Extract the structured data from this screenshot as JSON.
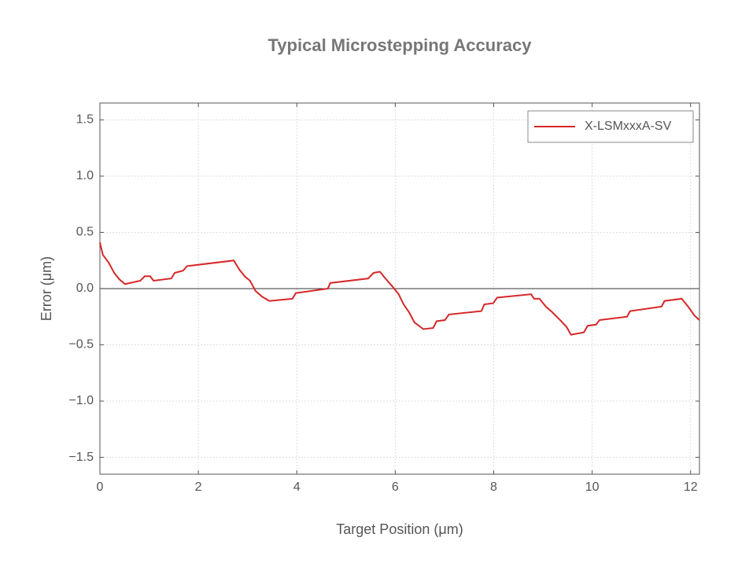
{
  "chart_data": {
    "type": "line",
    "title": "Typical Microstepping Accuracy",
    "x_label": "Target Position (μm)",
    "y_label": "Error (μm)",
    "xlim": [
      0,
      12.18
    ],
    "ylim": [
      -1.65,
      1.65
    ],
    "xticks": [
      0,
      2,
      4,
      6,
      8,
      10,
      12
    ],
    "yticks": [
      {
        "value": -1.5,
        "label": "−1.5"
      },
      {
        "value": -1.0,
        "label": "−1.0"
      },
      {
        "value": -0.5,
        "label": "−0.5"
      },
      {
        "value": 0,
        "label": "0.0"
      },
      0.5,
      {
        "value": 1.0,
        "label": "1.0"
      },
      1.5
    ],
    "grid": true,
    "reference_line": 0,
    "legend": "upper right",
    "x": [
      0,
      0.06,
      0.18,
      0.29,
      0.4,
      0.51,
      0.82,
      0.91,
      1.02,
      1.09,
      1.45,
      1.52,
      1.69,
      1.77,
      2.72,
      2.83,
      2.94,
      3.05,
      3.16,
      3.29,
      3.44,
      3.91,
      3.98,
      4.63,
      4.68,
      5.45,
      5.56,
      5.69,
      5.8,
      5.96,
      6.07,
      6.17,
      6.28,
      6.39,
      6.57,
      6.77,
      6.84,
      7.01,
      7.09,
      7.75,
      7.81,
      7.99,
      8.07,
      8.76,
      8.82,
      8.93,
      9.06,
      9.19,
      9.35,
      9.48,
      9.57,
      9.83,
      9.91,
      10.08,
      10.15,
      10.71,
      10.77,
      11.41,
      11.47,
      11.82,
      11.95,
      12.08,
      12.18
    ],
    "series": [
      {
        "name": "X-LSMxxxA-SV",
        "color": "#d62728",
        "values": [
          0.41,
          0.3,
          0.23,
          0.14,
          0.08,
          0.04,
          0.07,
          0.11,
          0.11,
          0.07,
          0.09,
          0.14,
          0.16,
          0.2,
          0.25,
          0.17,
          0.11,
          0.07,
          -0.02,
          -0.07,
          -0.11,
          -0.09,
          -0.04,
          0.0,
          0.05,
          0.09,
          0.14,
          0.15,
          0.09,
          0.01,
          -0.05,
          -0.14,
          -0.21,
          -0.3,
          -0.36,
          -0.35,
          -0.29,
          -0.28,
          -0.23,
          -0.2,
          -0.14,
          -0.13,
          -0.08,
          -0.05,
          -0.09,
          -0.09,
          -0.16,
          -0.21,
          -0.28,
          -0.34,
          -0.41,
          -0.39,
          -0.33,
          -0.32,
          -0.28,
          -0.25,
          -0.2,
          -0.16,
          -0.11,
          -0.09,
          -0.16,
          -0.24,
          -0.28
        ]
      }
    ]
  }
}
